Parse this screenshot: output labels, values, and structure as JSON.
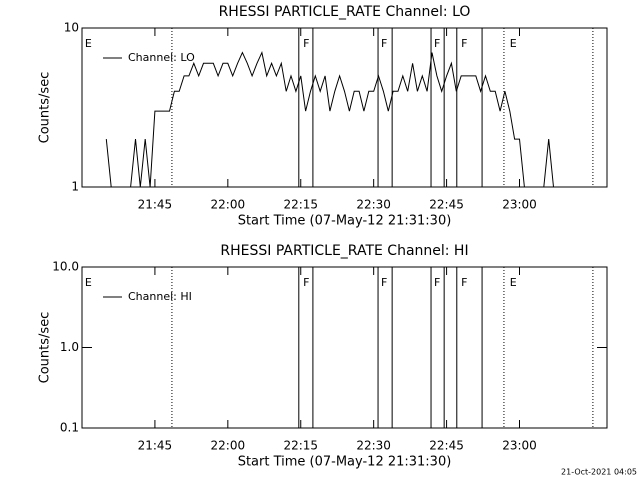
{
  "chart_data": [
    {
      "type": "line",
      "title": "RHESSI PARTICLE_RATE Channel: LO",
      "x_label": "Start Time (07-May-12 21:31:30)",
      "y_label": "Counts/sec",
      "log_y": true,
      "xlim": [
        0,
        108
      ],
      "ylim": [
        1,
        10
      ],
      "xticks": [
        {
          "value": 15,
          "label": "21:45"
        },
        {
          "value": 30,
          "label": "22:00"
        },
        {
          "value": 45,
          "label": "22:15"
        },
        {
          "value": 60,
          "label": "22:30"
        },
        {
          "value": 75,
          "label": "22:45"
        },
        {
          "value": 90,
          "label": "23:00"
        }
      ],
      "yticks": [
        1,
        10
      ],
      "legend": "upper left",
      "vlines": [
        {
          "x": 18.5,
          "style": "dotted"
        },
        {
          "x": 44.6,
          "style": "solid"
        },
        {
          "x": 47.5,
          "style": "solid"
        },
        {
          "x": 60.9,
          "style": "solid"
        },
        {
          "x": 63.8,
          "style": "solid"
        },
        {
          "x": 71.8,
          "style": "solid"
        },
        {
          "x": 74.5,
          "style": "solid"
        },
        {
          "x": 77.1,
          "style": "solid"
        },
        {
          "x": 82.3,
          "style": "solid"
        },
        {
          "x": 86.8,
          "style": "dotted"
        },
        {
          "x": 105.1,
          "style": "dotted"
        }
      ],
      "flags": [
        {
          "x": 0.6,
          "label": "E"
        },
        {
          "x": 45.5,
          "label": "F"
        },
        {
          "x": 61.5,
          "label": "F"
        },
        {
          "x": 72.4,
          "label": "F"
        },
        {
          "x": 78,
          "label": "F"
        },
        {
          "x": 88,
          "label": "E"
        }
      ],
      "series": [
        {
          "name": "Channel: LO",
          "color": "#000000",
          "x": [
            5,
            6,
            7,
            8,
            9,
            10,
            11,
            12,
            13,
            14,
            15,
            16,
            17,
            18,
            19,
            20,
            21,
            22,
            23,
            24,
            25,
            26,
            27,
            28,
            29,
            30,
            31,
            32,
            33,
            34,
            35,
            36,
            37,
            38,
            39,
            40,
            41,
            42,
            43,
            44,
            45,
            46,
            47,
            48,
            49,
            50,
            51,
            52,
            53,
            54,
            55,
            56,
            57,
            58,
            59,
            60,
            61,
            62,
            63,
            64,
            65,
            66,
            67,
            68,
            69,
            70,
            71,
            72,
            73,
            74,
            75,
            76,
            77,
            78,
            79,
            80,
            81,
            82,
            83,
            84,
            85,
            86,
            87,
            88,
            89,
            90,
            91,
            92,
            93,
            94,
            95,
            96,
            97,
            98,
            99,
            100
          ],
          "values": [
            2,
            1,
            1,
            1,
            1,
            1,
            2,
            1,
            2,
            1,
            3,
            3,
            3,
            3,
            4,
            4,
            5,
            5,
            6,
            5,
            6,
            6,
            6,
            5,
            6,
            6,
            5,
            6,
            7,
            6,
            5,
            6,
            7,
            5,
            6,
            5,
            6,
            4,
            5,
            4,
            5,
            3,
            4,
            5,
            4,
            5,
            3,
            4,
            5,
            4,
            3,
            4,
            4,
            3,
            4,
            4,
            5,
            4,
            3,
            4,
            4,
            5,
            4,
            6,
            4,
            5,
            4,
            7,
            5,
            4,
            5,
            6,
            4,
            5,
            5,
            5,
            5,
            4,
            5,
            4,
            4,
            3,
            4,
            3,
            2,
            2,
            1,
            1,
            1,
            1,
            1,
            2,
            1,
            1,
            1,
            1
          ]
        }
      ]
    },
    {
      "type": "line",
      "title": "RHESSI PARTICLE_RATE Channel: HI",
      "x_label": "Start Time (07-May-12 21:31:30)",
      "y_label": "Counts/sec",
      "log_y": true,
      "xlim": [
        0,
        108
      ],
      "ylim": [
        0.1,
        10
      ],
      "xticks": [
        {
          "value": 15,
          "label": "21:45"
        },
        {
          "value": 30,
          "label": "22:00"
        },
        {
          "value": 45,
          "label": "22:15"
        },
        {
          "value": 60,
          "label": "22:30"
        },
        {
          "value": 75,
          "label": "22:45"
        },
        {
          "value": 90,
          "label": "23:00"
        }
      ],
      "yticks": [
        {
          "value": 0.1,
          "label": "0.1"
        },
        {
          "value": 1,
          "label": "1.0"
        },
        {
          "value": 10,
          "label": "10.0"
        }
      ],
      "legend": "upper left",
      "vlines": [
        {
          "x": 18.5,
          "style": "dotted"
        },
        {
          "x": 44.6,
          "style": "solid"
        },
        {
          "x": 47.5,
          "style": "solid"
        },
        {
          "x": 60.9,
          "style": "solid"
        },
        {
          "x": 63.8,
          "style": "solid"
        },
        {
          "x": 71.8,
          "style": "solid"
        },
        {
          "x": 74.5,
          "style": "solid"
        },
        {
          "x": 77.1,
          "style": "solid"
        },
        {
          "x": 82.3,
          "style": "solid"
        },
        {
          "x": 86.8,
          "style": "dotted"
        },
        {
          "x": 105.1,
          "style": "dotted"
        }
      ],
      "flags": [
        {
          "x": 0.6,
          "label": "E"
        },
        {
          "x": 45.5,
          "label": "F"
        },
        {
          "x": 61.5,
          "label": "F"
        },
        {
          "x": 72.4,
          "label": "F"
        },
        {
          "x": 78,
          "label": "F"
        },
        {
          "x": 88,
          "label": "E"
        }
      ],
      "series": [
        {
          "name": "Channel: HI",
          "color": "#000000",
          "x": [],
          "values": []
        }
      ]
    }
  ],
  "footer": "21-Oct-2021 04:05"
}
